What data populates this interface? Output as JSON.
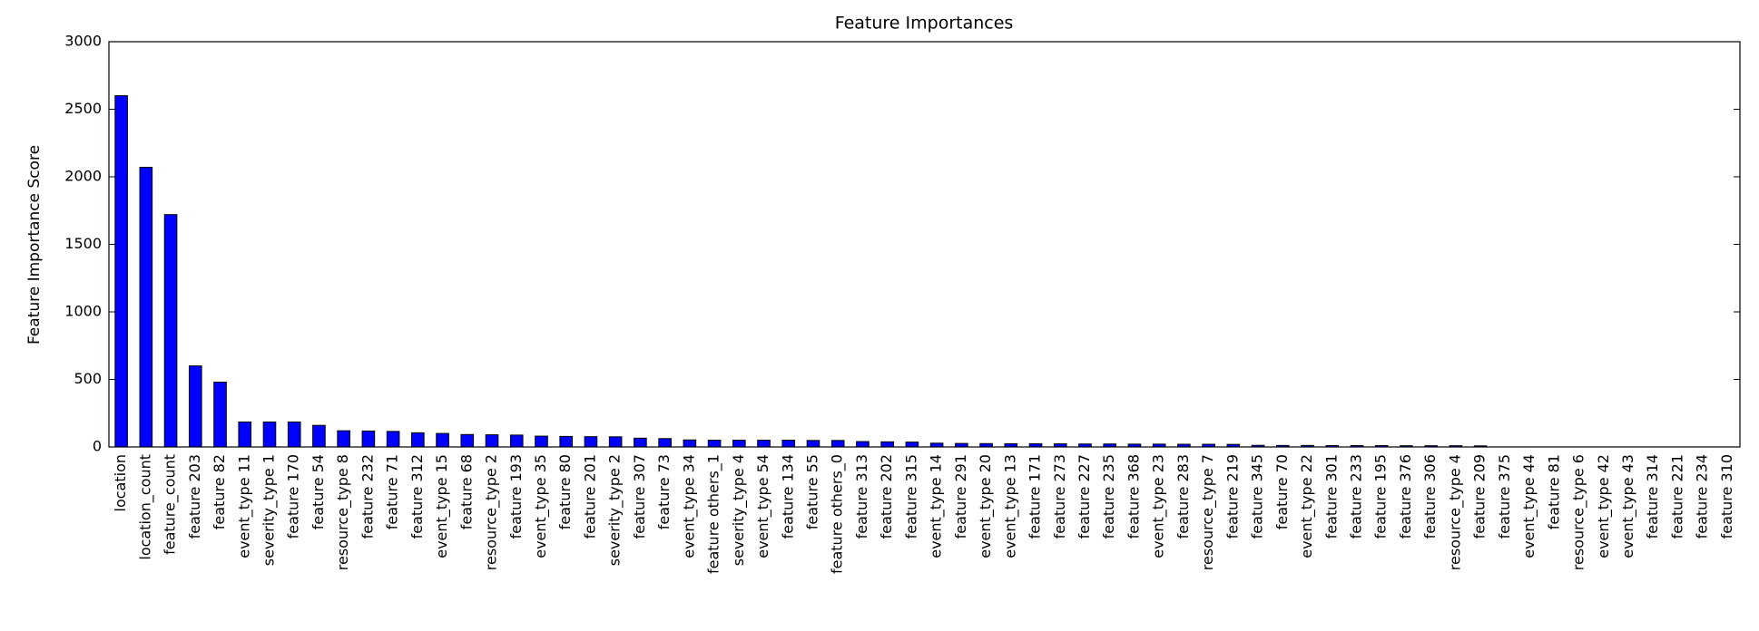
{
  "chart_data": {
    "type": "bar",
    "title": "Feature Importances",
    "y_label": "Feature Importance Score",
    "categories": [
      "location",
      "location_count",
      "feature_count",
      "feature 203",
      "feature 82",
      "event_type 11",
      "severity_type 1",
      "feature 170",
      "feature 54",
      "resource_type 8",
      "feature 232",
      "feature 71",
      "feature 312",
      "event_type 15",
      "feature 68",
      "resource_type 2",
      "feature 193",
      "event_type 35",
      "feature 80",
      "feature 201",
      "severity_type 2",
      "feature 307",
      "feature 73",
      "event_type 34",
      "feature others_1",
      "severity_type 4",
      "event_type 54",
      "feature 134",
      "feature 55",
      "feature others_0",
      "feature 313",
      "feature 202",
      "feature 315",
      "event_type 14",
      "feature 291",
      "event_type 20",
      "event_type 13",
      "feature 171",
      "feature 273",
      "feature 227",
      "feature 235",
      "feature 368",
      "event_type 23",
      "feature 283",
      "resource_type 7",
      "feature 219",
      "feature 345",
      "feature 70",
      "event_type 22",
      "feature 301",
      "feature 233",
      "feature 195",
      "feature 376",
      "feature 306",
      "resource_type 4",
      "feature 209",
      "feature 375",
      "event_type 44",
      "feature 81",
      "resource_type 6",
      "event_type 42",
      "event_type 43",
      "feature 314",
      "feature 221",
      "feature 234",
      "feature 310"
    ],
    "values": [
      2600,
      2070,
      1720,
      600,
      480,
      185,
      185,
      185,
      160,
      120,
      118,
      115,
      105,
      100,
      92,
      90,
      88,
      80,
      78,
      76,
      75,
      65,
      62,
      52,
      50,
      50,
      50,
      50,
      48,
      48,
      40,
      38,
      36,
      28,
      26,
      25,
      24,
      24,
      23,
      22,
      22,
      21,
      21,
      20,
      20,
      19,
      12,
      11,
      11,
      10,
      10,
      10,
      9,
      9,
      9,
      8,
      0,
      0,
      0,
      0,
      0,
      0,
      0,
      0,
      0,
      0
    ],
    "color": "#0000ff",
    "ylim": [
      0,
      3000
    ],
    "yticks": [
      0,
      500,
      1000,
      1500,
      2000,
      2500,
      3000
    ]
  }
}
